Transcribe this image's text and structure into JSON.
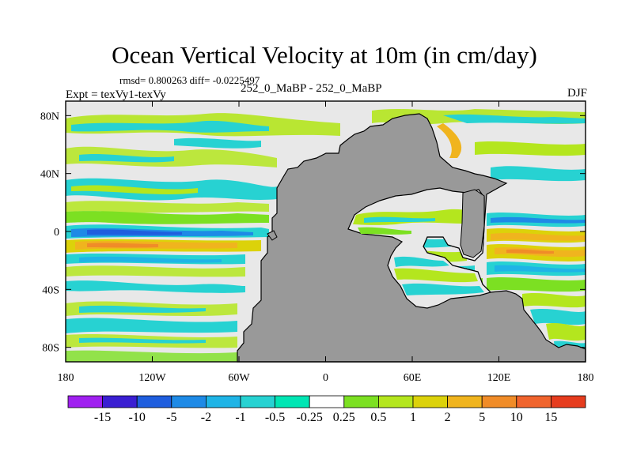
{
  "chart_data": {
    "type": "heatmap",
    "title": "Ocean Vertical Velocity at 10m (in cm/day)",
    "stats_line": "rmsd= 0.800263 diff= -0.0225497",
    "experiment_label": "Expt = texVy1-texVy",
    "difference_label": "252_0_MaBP - 252_0_MaBP",
    "season": "DJF",
    "x_range": [
      -180,
      180
    ],
    "y_range": [
      -90,
      90
    ],
    "x_ticks": [
      {
        "value": -180,
        "label": "180"
      },
      {
        "value": -120,
        "label": "120W"
      },
      {
        "value": -60,
        "label": "60W"
      },
      {
        "value": 0,
        "label": "0"
      },
      {
        "value": 60,
        "label": "60E"
      },
      {
        "value": 120,
        "label": "120E"
      },
      {
        "value": 180,
        "label": "180"
      }
    ],
    "y_ticks": [
      {
        "value": 80,
        "label": "80N"
      },
      {
        "value": 40,
        "label": "40N"
      },
      {
        "value": 0,
        "label": "0"
      },
      {
        "value": -40,
        "label": "40S"
      },
      {
        "value": -80,
        "label": "80S"
      }
    ],
    "colorbar": {
      "labels": [
        "-15",
        "-10",
        "-5",
        "-2",
        "-1",
        "-0.5",
        "-0.25",
        "0.25",
        "0.5",
        "1",
        "2",
        "5",
        "10",
        "15"
      ],
      "colors": [
        "#a020f0",
        "#3a1fd2",
        "#1f5ede",
        "#1e8ae6",
        "#1fb4e6",
        "#27d2d2",
        "#00e6b4",
        "#ffffff",
        "#7ce022",
        "#b4e61e",
        "#dcd20a",
        "#f0b41e",
        "#f08c28",
        "#f0642d",
        "#e63c1e"
      ]
    },
    "land_color": "#999999",
    "ocean_background_color": "#e8e8e8",
    "fields": {
      "background_band": "0.25",
      "west_equatorial_upwelling": "5",
      "off_equatorial_downwelling": "-5",
      "east_equatorial_upwelling": "5",
      "subpolar_bands": "1",
      "southern_ocean_bands": "1"
    }
  }
}
